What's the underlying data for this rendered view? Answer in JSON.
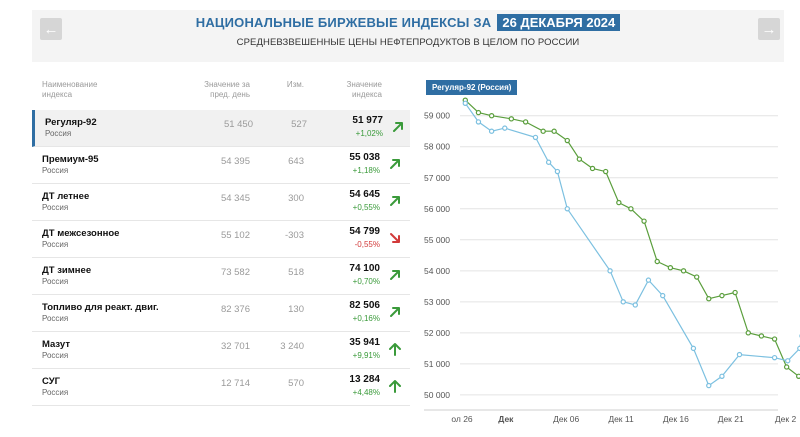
{
  "header": {
    "title": "НАЦИОНАЛЬНЫЕ БИРЖЕВЫЕ ИНДЕКСЫ ЗА",
    "date": "26 ДЕКАБРЯ 2024",
    "subtitle": "СРЕДНЕВЗВЕШЕННЫЕ ЦЕНЫ НЕФТЕПРОДУКТОВ В ЦЕЛОМ ПО РОССИИ",
    "prev_icon": "arrow-left-icon",
    "next_icon": "arrow-right-icon"
  },
  "table": {
    "columns": {
      "name": [
        "Наименование",
        "индекса"
      ],
      "prev": [
        "Значение за",
        "пред. день"
      ],
      "change": "Изм.",
      "value": [
        "Значение",
        "индекса"
      ]
    },
    "rows": [
      {
        "name": "Регуляр-92",
        "region": "Россия",
        "prev": "51 450",
        "change": "527",
        "value": "51 977",
        "pct": "+1,02%",
        "direction": "up-right",
        "active": true
      },
      {
        "name": "Премиум-95",
        "region": "Россия",
        "prev": "54 395",
        "change": "643",
        "value": "55 038",
        "pct": "+1,18%",
        "direction": "up-right",
        "active": false
      },
      {
        "name": "ДТ летнее",
        "region": "Россия",
        "prev": "54 345",
        "change": "300",
        "value": "54 645",
        "pct": "+0,55%",
        "direction": "up-right",
        "active": false
      },
      {
        "name": "ДТ межсезонное",
        "region": "Россия",
        "prev": "55 102",
        "change": "-303",
        "value": "54 799",
        "pct": "-0,55%",
        "direction": "down-right",
        "active": false
      },
      {
        "name": "ДТ зимнее",
        "region": "Россия",
        "prev": "73 582",
        "change": "518",
        "value": "74 100",
        "pct": "+0,70%",
        "direction": "up-right",
        "active": false
      },
      {
        "name": "Топливо для реакт. двиг.",
        "region": "Россия",
        "prev": "82 376",
        "change": "130",
        "value": "82 506",
        "pct": "+0,16%",
        "direction": "up-right",
        "active": false
      },
      {
        "name": "Мазут",
        "region": "Россия",
        "prev": "32 701",
        "change": "3 240",
        "value": "35 941",
        "pct": "+9,91%",
        "direction": "up",
        "active": false
      },
      {
        "name": "СУГ",
        "region": "Россия",
        "prev": "12 714",
        "change": "570",
        "value": "13 284",
        "pct": "+4,48%",
        "direction": "up",
        "active": false
      }
    ]
  },
  "colors": {
    "brand": "#2f6ea3",
    "up": "#3a9a3a",
    "down": "#d23a3a",
    "series_green": "#5a9e3c",
    "series_blue": "#7cc0e0"
  },
  "chart_data": {
    "type": "line",
    "title": "Регуляр-92 (Россия)",
    "x_tick_labels": [
      "ол 26",
      "Дек",
      "Дек 06",
      "Дек 11",
      "Дек 16",
      "Дек 21",
      "Дек 2"
    ],
    "y_ticks": [
      50000,
      51000,
      52000,
      53000,
      54000,
      55000,
      56000,
      57000,
      58000,
      59000
    ],
    "y_tick_labels": [
      "50 000",
      "51 000",
      "52 000",
      "53 000",
      "54 000",
      "55 000",
      "56 000",
      "57 000",
      "58 000",
      "59 000"
    ],
    "ylim": [
      49900,
      59700
    ],
    "xlim": [
      0,
      31
    ],
    "series": [
      {
        "color": "#5a9e3c",
        "points": [
          [
            0.3,
            59.5
          ],
          [
            1.5,
            59.1
          ],
          [
            2.7,
            59.0
          ],
          [
            4.5,
            58.9
          ],
          [
            5.8,
            58.8
          ],
          [
            7.4,
            58.5
          ],
          [
            8.4,
            58.5
          ],
          [
            9.6,
            58.2
          ],
          [
            10.7,
            57.6
          ],
          [
            11.9,
            57.3
          ],
          [
            13.1,
            57.2
          ],
          [
            14.3,
            56.2
          ],
          [
            15.4,
            56.0
          ],
          [
            16.6,
            55.6
          ],
          [
            17.8,
            54.3
          ],
          [
            19.0,
            54.1
          ],
          [
            20.2,
            54.0
          ],
          [
            21.4,
            53.8
          ],
          [
            22.5,
            53.1
          ],
          [
            23.7,
            53.2
          ],
          [
            24.9,
            53.3
          ],
          [
            26.1,
            52.0
          ],
          [
            27.3,
            51.9
          ],
          [
            28.5,
            51.8
          ],
          [
            29.6,
            50.9
          ],
          [
            30.7,
            50.6
          ]
        ]
      },
      {
        "color": "#7cc0e0",
        "points": [
          [
            0.3,
            59.4
          ],
          [
            1.5,
            58.8
          ],
          [
            2.7,
            58.5
          ],
          [
            3.9,
            58.6
          ],
          [
            6.7,
            58.3
          ],
          [
            7.9,
            57.5
          ],
          [
            8.7,
            57.2
          ],
          [
            9.6,
            56.0
          ],
          [
            13.5,
            54.0
          ],
          [
            14.7,
            53.0
          ],
          [
            15.8,
            52.9
          ],
          [
            17.0,
            53.7
          ],
          [
            18.3,
            53.2
          ],
          [
            21.1,
            51.5
          ],
          [
            22.5,
            50.3
          ],
          [
            23.7,
            50.6
          ],
          [
            25.3,
            51.3
          ],
          [
            28.5,
            51.2
          ],
          [
            29.7,
            51.1
          ],
          [
            30.8,
            51.5
          ],
          [
            31.0,
            51.9
          ]
        ]
      }
    ],
    "grid": "horizontal"
  }
}
